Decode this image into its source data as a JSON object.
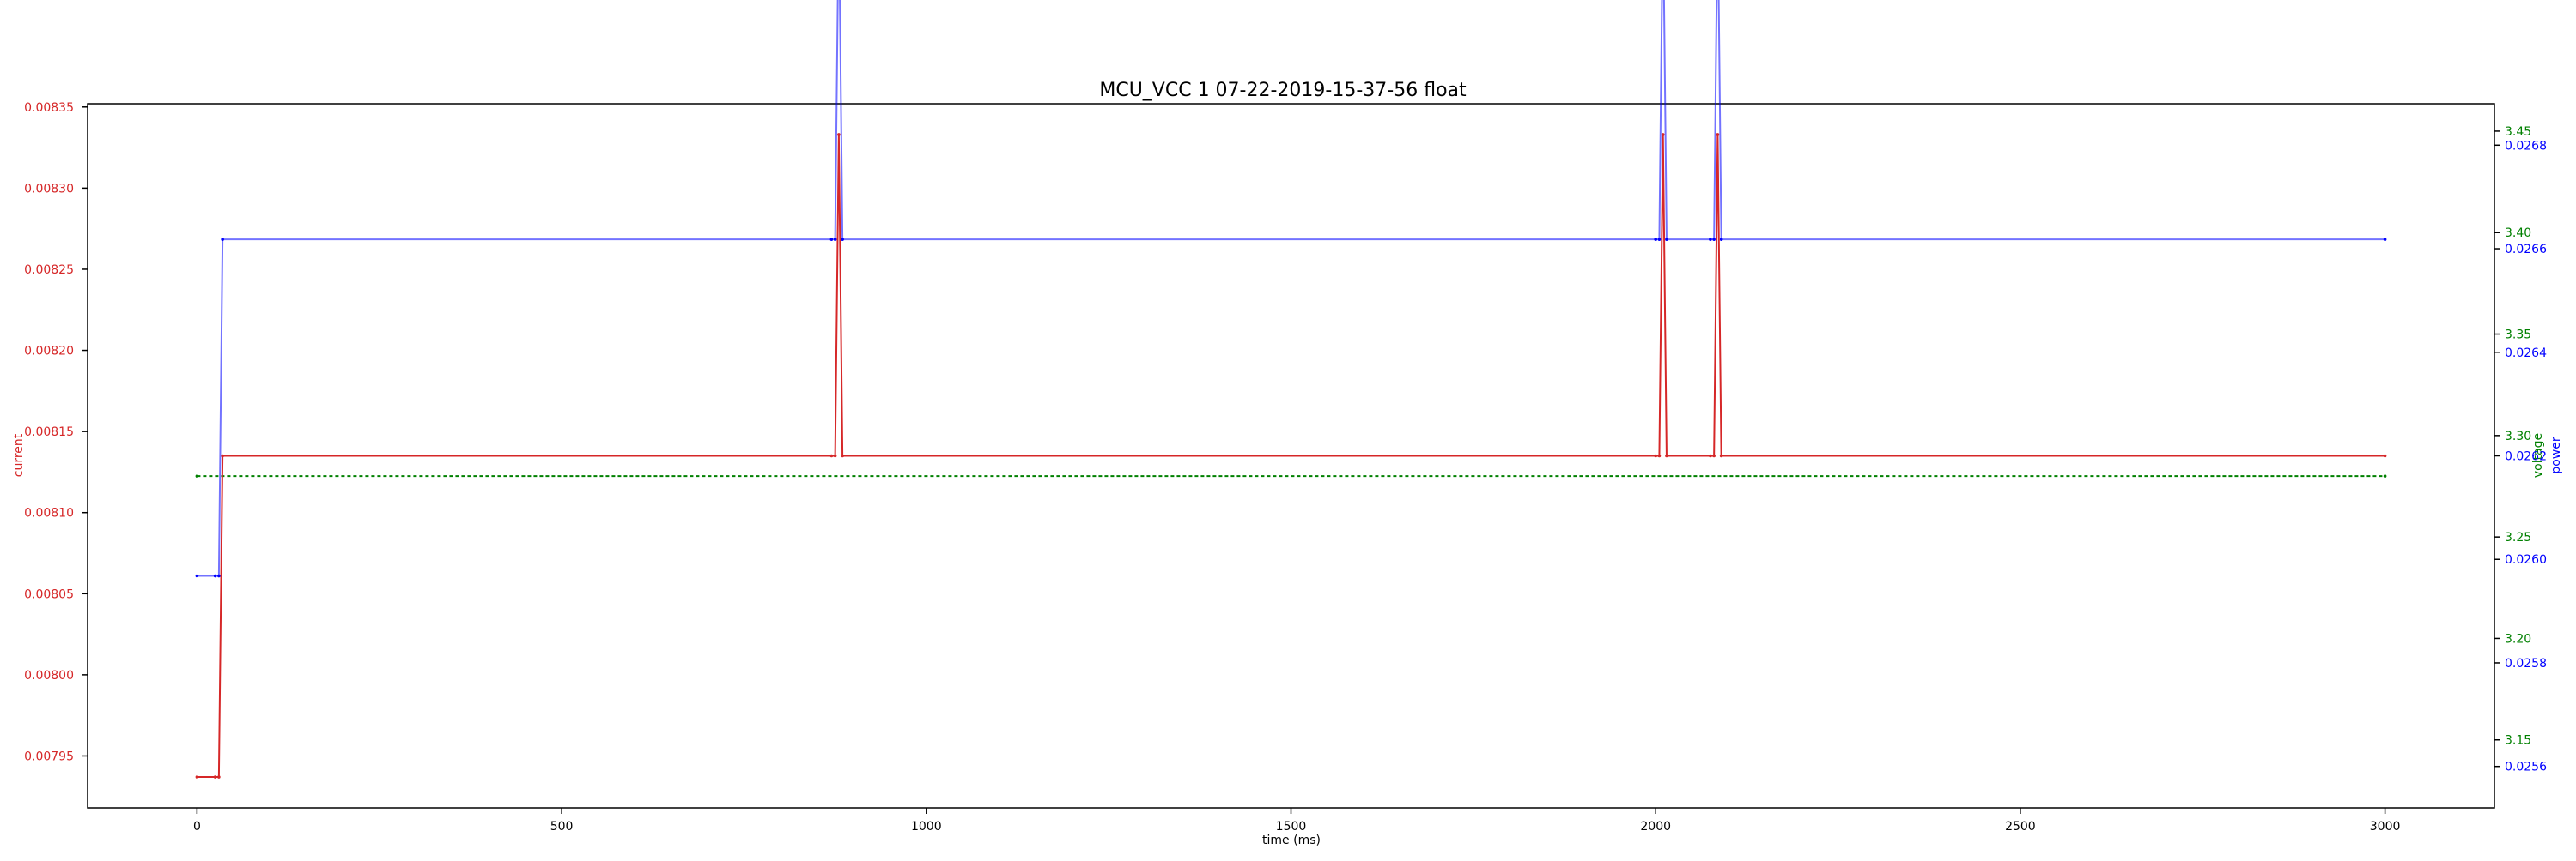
{
  "chart_data": {
    "type": "line",
    "title": "MCU_VCC   1   07-22-2019-15-37-56   float",
    "xlabel": "time (ms)",
    "ylabel_left": "current",
    "ylabel_right_1": "voltage",
    "ylabel_right_2": "power",
    "xlim": [
      -150,
      3150
    ],
    "x_ticks": [
      0,
      500,
      1000,
      1500,
      2000,
      2500,
      3000
    ],
    "x_tick_labels": [
      "0",
      "500",
      "1000",
      "1500",
      "2000",
      "2500",
      "3000"
    ],
    "grid": false,
    "axes": {
      "current": {
        "side": "left",
        "color": "#d62728",
        "ylim": [
          0.007918,
          0.008352
        ],
        "ticks": [
          0.00795,
          0.008,
          0.00805,
          0.0081,
          0.00815,
          0.0082,
          0.00825,
          0.0083,
          0.00835
        ],
        "tick_labels": [
          "0.00795",
          "0.00800",
          "0.00805",
          "0.00810",
          "0.00815",
          "0.00820",
          "0.00825",
          "0.00830",
          "0.00835"
        ]
      },
      "voltage": {
        "side": "right",
        "color": "#008000",
        "ylim": [
          3.1165,
          3.4635
        ],
        "ticks": [
          3.15,
          3.2,
          3.25,
          3.3,
          3.35,
          3.4,
          3.45
        ],
        "tick_labels": [
          "3.15",
          "3.20",
          "3.25",
          "3.30",
          "3.35",
          "3.40",
          "3.45"
        ]
      },
      "power": {
        "side": "right",
        "color": "#0000ff",
        "ylim": [
          0.02552,
          0.02688
        ],
        "ticks": [
          0.0256,
          0.0258,
          0.026,
          0.0262,
          0.0264,
          0.0266,
          0.0268
        ],
        "tick_labels": [
          "0.0256",
          "0.0258",
          "0.0260",
          "0.0262",
          "0.0264",
          "0.0266",
          "0.0268"
        ]
      }
    },
    "series": [
      {
        "name": "current",
        "axis": "current",
        "color": "#d62728",
        "x": [
          0,
          25,
          30,
          35,
          870,
          875,
          880,
          885,
          2000,
          2005,
          2010,
          2015,
          2075,
          2080,
          2085,
          2090,
          3000
        ],
        "values": [
          0.007937,
          0.007937,
          0.007937,
          0.008135,
          0.008135,
          0.008135,
          0.008333,
          0.008135,
          0.008135,
          0.008135,
          0.008333,
          0.008135,
          0.008135,
          0.008135,
          0.008333,
          0.008135,
          0.008135
        ]
      },
      {
        "name": "voltage",
        "axis": "voltage",
        "color": "#008000",
        "x": [
          0,
          3000
        ],
        "values": [
          3.28,
          3.28
        ]
      },
      {
        "name": "power",
        "axis": "power",
        "color": "#0000ff",
        "x": [
          0,
          25,
          30,
          35,
          870,
          875,
          880,
          885,
          2000,
          2005,
          2010,
          2015,
          2075,
          2080,
          2085,
          2090,
          3000
        ],
        "values": [
          0.025968,
          0.025968,
          0.025968,
          0.026618,
          0.026618,
          0.026618,
          0.027268,
          0.026618,
          0.026618,
          0.026618,
          0.027268,
          0.026618,
          0.026618,
          0.026618,
          0.027268,
          0.026618,
          0.026618
        ]
      }
    ]
  }
}
